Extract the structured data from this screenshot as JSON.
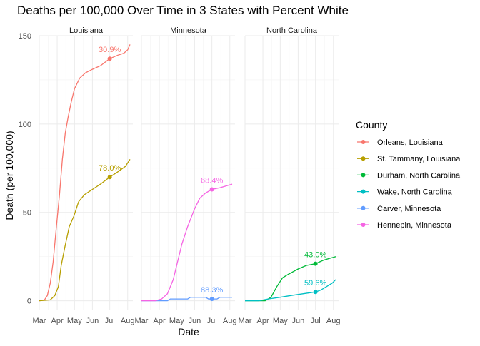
{
  "chart_data": {
    "type": "line",
    "title": "Deaths per 100,000 Over Time in 3 States with Percent White",
    "xlabel": "Date",
    "ylabel": "Death (per 100,000)",
    "x_ticks": [
      "Mar",
      "Apr",
      "May",
      "Jun",
      "Jul",
      "Aug"
    ],
    "x_range": [
      "2020-03-01",
      "2020-08-10"
    ],
    "y_ticks": [
      0,
      50,
      100,
      150
    ],
    "ylim": [
      -5,
      150
    ],
    "grid": true,
    "legend_title": "County",
    "legend_position": "right",
    "panels": [
      {
        "name": "Louisiana",
        "series": [
          {
            "name": "Orleans, Louisiana",
            "color": "#F8766D",
            "points": [
              [
                "2020-03-01",
                0
              ],
              [
                "2020-03-10",
                0.5
              ],
              [
                "2020-03-15",
                3
              ],
              [
                "2020-03-20",
                10
              ],
              [
                "2020-03-25",
                22
              ],
              [
                "2020-03-30",
                40
              ],
              [
                "2020-04-05",
                60
              ],
              [
                "2020-04-10",
                80
              ],
              [
                "2020-04-15",
                95
              ],
              [
                "2020-04-20",
                104
              ],
              [
                "2020-04-25",
                112
              ],
              [
                "2020-05-01",
                120
              ],
              [
                "2020-05-10",
                126
              ],
              [
                "2020-05-20",
                129
              ],
              [
                "2020-06-01",
                131
              ],
              [
                "2020-06-15",
                133
              ],
              [
                "2020-07-01",
                137
              ],
              [
                "2020-07-15",
                139
              ],
              [
                "2020-07-25",
                140
              ],
              [
                "2020-08-01",
                142
              ],
              [
                "2020-08-05",
                145
              ]
            ],
            "annotation": {
              "date": "2020-07-01",
              "value": 137,
              "label": "30.9%"
            }
          },
          {
            "name": "St. Tammany, Louisiana",
            "color": "#B79F00",
            "points": [
              [
                "2020-03-01",
                0
              ],
              [
                "2020-03-20",
                0.5
              ],
              [
                "2020-03-28",
                3
              ],
              [
                "2020-04-03",
                8
              ],
              [
                "2020-04-08",
                20
              ],
              [
                "2020-04-14",
                30
              ],
              [
                "2020-04-22",
                42
              ],
              [
                "2020-04-30",
                48
              ],
              [
                "2020-05-08",
                56
              ],
              [
                "2020-05-18",
                60
              ],
              [
                "2020-06-01",
                63
              ],
              [
                "2020-06-15",
                66
              ],
              [
                "2020-07-01",
                70
              ],
              [
                "2020-07-15",
                73
              ],
              [
                "2020-07-28",
                76
              ],
              [
                "2020-08-05",
                80
              ]
            ],
            "annotation": {
              "date": "2020-07-01",
              "value": 70,
              "label": "78.0%"
            }
          }
        ]
      },
      {
        "name": "Minnesota",
        "series": [
          {
            "name": "Carver, Minnesota",
            "color": "#619CFF",
            "points": [
              [
                "2020-03-01",
                0
              ],
              [
                "2020-04-15",
                0
              ],
              [
                "2020-04-20",
                1
              ],
              [
                "2020-05-20",
                1
              ],
              [
                "2020-05-25",
                2
              ],
              [
                "2020-06-20",
                2
              ],
              [
                "2020-06-25",
                1
              ],
              [
                "2020-07-10",
                1
              ],
              [
                "2020-07-15",
                2
              ],
              [
                "2020-08-05",
                2
              ]
            ],
            "annotation": {
              "date": "2020-07-01",
              "value": 1,
              "label": "88.3%"
            }
          },
          {
            "name": "Hennepin, Minnesota",
            "color": "#F564E3",
            "points": [
              [
                "2020-03-01",
                0
              ],
              [
                "2020-03-25",
                0
              ],
              [
                "2020-04-05",
                1
              ],
              [
                "2020-04-15",
                4
              ],
              [
                "2020-04-25",
                12
              ],
              [
                "2020-05-01",
                20
              ],
              [
                "2020-05-10",
                32
              ],
              [
                "2020-05-20",
                42
              ],
              [
                "2020-06-01",
                52
              ],
              [
                "2020-06-10",
                58
              ],
              [
                "2020-06-20",
                61
              ],
              [
                "2020-07-01",
                63
              ],
              [
                "2020-07-15",
                64
              ],
              [
                "2020-08-05",
                66
              ]
            ],
            "annotation": {
              "date": "2020-07-01",
              "value": 63,
              "label": "68.4%"
            }
          }
        ]
      },
      {
        "name": "North Carolina",
        "series": [
          {
            "name": "Durham, North Carolina",
            "color": "#00BA38",
            "points": [
              [
                "2020-03-01",
                0
              ],
              [
                "2020-04-05",
                0
              ],
              [
                "2020-04-15",
                2
              ],
              [
                "2020-04-25",
                8
              ],
              [
                "2020-05-05",
                13
              ],
              [
                "2020-05-15",
                15
              ],
              [
                "2020-06-01",
                18
              ],
              [
                "2020-06-15",
                20
              ],
              [
                "2020-07-01",
                21
              ],
              [
                "2020-07-15",
                23
              ],
              [
                "2020-07-25",
                24
              ],
              [
                "2020-08-05",
                25
              ]
            ],
            "annotation": {
              "date": "2020-07-01",
              "value": 21,
              "label": "43.0%"
            }
          },
          {
            "name": "Wake, North Carolina",
            "color": "#00BFC4",
            "points": [
              [
                "2020-03-01",
                0
              ],
              [
                "2020-03-25",
                0
              ],
              [
                "2020-04-10",
                1
              ],
              [
                "2020-05-01",
                2
              ],
              [
                "2020-05-20",
                3
              ],
              [
                "2020-06-10",
                4
              ],
              [
                "2020-07-01",
                5
              ],
              [
                "2020-07-10",
                6
              ],
              [
                "2020-07-20",
                8
              ],
              [
                "2020-07-30",
                10
              ],
              [
                "2020-08-05",
                12
              ]
            ],
            "annotation": {
              "date": "2020-07-01",
              "value": 5,
              "label": "59.6%"
            }
          }
        ]
      }
    ],
    "legend_order": [
      "Orleans, Louisiana",
      "St. Tammany, Louisiana",
      "Durham, North Carolina",
      "Wake, North Carolina",
      "Carver, Minnesota",
      "Hennepin, Minnesota"
    ]
  }
}
